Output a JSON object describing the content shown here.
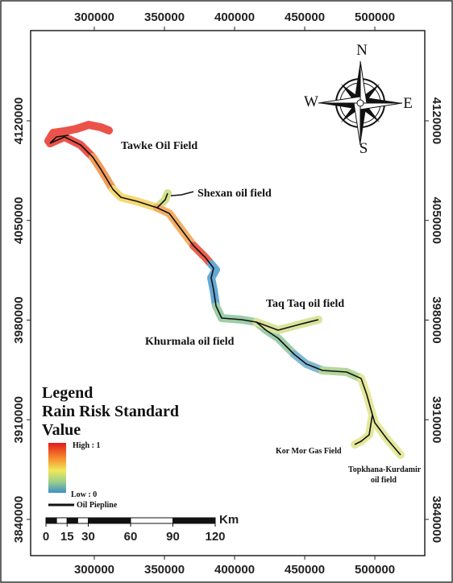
{
  "map": {
    "x_ticks": [
      300000,
      350000,
      400000,
      450000,
      500000
    ],
    "y_ticks": [
      3840000,
      3910000,
      3980000,
      4050000,
      4120000
    ],
    "xlim": [
      254600,
      535600
    ],
    "ylim": [
      3814550,
      4183350
    ],
    "compass": {
      "north": "N",
      "south": "S",
      "east": "E",
      "west": "W"
    },
    "fields": {
      "tawke": "Tawke Oil Field",
      "shexan": "Shexan oil field",
      "taqtaq": "Taq Taq oil field",
      "khurmala": "Khurmala oil field",
      "kormor": "Kor Mor Gas Field",
      "topkhana": [
        "Topkhana-Kurdamir",
        "oil field"
      ]
    },
    "legend": {
      "title": "Legend",
      "subtitle_lines": [
        "Rain Risk Standard",
        "Value"
      ],
      "high": "High : 1",
      "low": "Low : 0",
      "pipeline": "Oil Piepline"
    },
    "scale_bar": {
      "ticks": [
        0,
        15,
        30,
        60,
        90,
        120
      ],
      "unit": "Km"
    }
  }
}
